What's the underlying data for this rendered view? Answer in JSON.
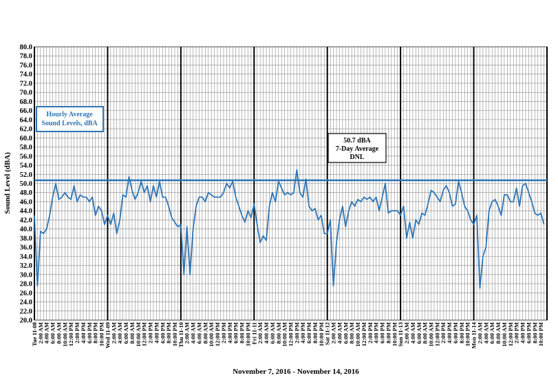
{
  "chart_data": {
    "type": "line",
    "y_label": "Sound Level (dBA)",
    "x_label": "November 7, 2016 - November 14, 2016",
    "ylim": [
      20,
      80
    ],
    "yticks": [
      {
        "value": 20,
        "label": "20.0"
      },
      {
        "value": 22,
        "label": "22.0"
      },
      {
        "value": 24,
        "label": "24.0"
      },
      {
        "value": 26,
        "label": "26.0"
      },
      {
        "value": 28,
        "label": "28.0"
      },
      {
        "value": 30,
        "label": "30.0"
      },
      {
        "value": 32,
        "label": "32.0"
      },
      {
        "value": 34,
        "label": "34.0"
      },
      {
        "value": 36,
        "label": "36.0"
      },
      {
        "value": 38,
        "label": "38.0"
      },
      {
        "value": 40,
        "label": "40.0"
      },
      {
        "value": 42,
        "label": "42.0"
      },
      {
        "value": 44,
        "label": "44.0"
      },
      {
        "value": 46,
        "label": "46.0"
      },
      {
        "value": 48,
        "label": "48.0"
      },
      {
        "value": 50,
        "label": "50.0"
      },
      {
        "value": 52,
        "label": "52.0"
      },
      {
        "value": 54,
        "label": "54.0"
      },
      {
        "value": 56,
        "label": "56.0"
      },
      {
        "value": 58,
        "label": "58.0"
      },
      {
        "value": 60,
        "label": "60.0"
      },
      {
        "value": 62,
        "label": "62.0"
      },
      {
        "value": 64,
        "label": "64.0"
      },
      {
        "value": 66,
        "label": "66.0"
      },
      {
        "value": 68,
        "label": "68.0"
      },
      {
        "value": 70,
        "label": "70.0"
      },
      {
        "value": 72,
        "label": "72.0"
      },
      {
        "value": 74,
        "label": "74.0"
      },
      {
        "value": 76,
        "label": "76.0"
      },
      {
        "value": 78,
        "label": "78.0"
      },
      {
        "value": 80,
        "label": "80.0"
      }
    ],
    "grid": true,
    "categories": [
      "Tue 11-08",
      null,
      "2:00 AM",
      null,
      "4:00 AM",
      null,
      "6:00 AM",
      null,
      "8:00 AM",
      null,
      "10:00 AM",
      null,
      "12:00 PM",
      null,
      "2:00 PM",
      null,
      "4:00 PM",
      null,
      "6:00 PM",
      null,
      "8:00 PM",
      null,
      "10:00 PM",
      null,
      "Wed 11-09",
      null,
      "2:00 AM",
      null,
      "4:00 AM",
      null,
      "6:00 AM",
      null,
      "8:00 AM",
      null,
      "10:00 AM",
      null,
      "12:00 PM",
      null,
      "2:00 PM",
      null,
      "4:00 PM",
      null,
      "6:00 PM",
      null,
      "8:00 PM",
      null,
      "10:00 PM",
      null,
      "Thu 11-10",
      null,
      "2:00 AM",
      null,
      "4:00 AM",
      null,
      "6:00 AM",
      null,
      "8:00 AM",
      null,
      "10:00 AM",
      null,
      "12:00 PM",
      null,
      "2:00 PM",
      null,
      "4:00 PM",
      null,
      "6:00 PM",
      null,
      "8:00 PM",
      null,
      "10:00 PM",
      null,
      "Fri 11-11",
      null,
      "2:00 AM",
      null,
      "4:00 AM",
      null,
      "6:00 AM",
      null,
      "8:00 AM",
      null,
      "10:00 AM",
      null,
      "12:00 PM",
      null,
      "2:00 PM",
      null,
      "4:00 PM",
      null,
      "6:00 PM",
      null,
      "8:00 PM",
      null,
      "10:00 PM",
      null,
      "Sat 11-12",
      null,
      "2:00 AM",
      null,
      "4:00 AM",
      null,
      "6:00 AM",
      null,
      "8:00 AM",
      null,
      "10:00 AM",
      null,
      "12:00 PM",
      null,
      "2:00 PM",
      null,
      "4:00 PM",
      null,
      "6:00 PM",
      null,
      "8:00 PM",
      null,
      "10:00 PM",
      null,
      "Sun 11-13",
      null,
      "2:00 AM",
      null,
      "4:00 AM",
      null,
      "6:00 AM",
      null,
      "8:00 AM",
      null,
      "10:00 AM",
      null,
      "12:00 PM",
      null,
      "2:00 PM",
      null,
      "4:00 PM",
      null,
      "6:00 PM",
      null,
      "8:00 PM",
      null,
      "10:00 PM",
      null,
      "Mon 11-14",
      null,
      "2:00 AM",
      null,
      "4:00 AM",
      null,
      "6:00 AM",
      null,
      "8:00 AM",
      null,
      "10:00 AM",
      null,
      "12:00 PM",
      null,
      "2:00 PM",
      null,
      "4:00 PM",
      null,
      "6:00 PM",
      null,
      "8:00 PM",
      null,
      "10:00 PM",
      null
    ],
    "series": [
      {
        "name": [
          "Hourly Average",
          "Sound Levels, dBA"
        ],
        "color": "#2e75b6",
        "values": [
          43,
          27.5,
          39.5,
          39,
          40,
          43,
          47,
          50,
          46.5,
          47,
          48,
          47,
          46.5,
          49.5,
          46,
          47.5,
          47,
          47,
          46,
          47,
          43,
          45,
          44,
          41,
          43,
          41,
          43.5,
          39,
          42,
          47.5,
          47,
          51.5,
          48.5,
          46.5,
          48,
          50.5,
          48,
          49.5,
          46,
          49.5,
          47,
          50.5,
          47,
          47,
          45,
          42.5,
          41.5,
          40.5,
          41,
          30,
          40.5,
          30,
          40,
          45,
          47,
          47,
          46,
          48,
          47.5,
          47,
          47,
          47,
          48,
          50,
          49,
          50.5,
          47,
          45,
          43,
          41.5,
          44,
          42.5,
          45.5,
          41,
          37,
          38.5,
          37.5,
          45,
          48,
          46,
          50.5,
          49,
          47.5,
          48,
          47.5,
          48,
          53,
          48,
          47,
          51,
          45,
          44,
          44.5,
          42,
          43,
          39,
          39,
          42,
          27.5,
          37,
          42,
          45,
          40.5,
          44,
          46,
          45,
          46.5,
          46,
          47,
          46.5,
          47,
          46,
          47,
          44,
          47,
          50,
          43.5,
          44,
          44,
          44,
          43,
          45,
          38,
          41.5,
          38,
          42,
          41,
          43.5,
          43,
          45.5,
          48.5,
          48,
          47,
          46,
          48.5,
          49.5,
          48,
          45,
          45.5,
          50.5,
          48,
          45,
          44,
          42,
          41,
          43,
          27,
          34,
          36,
          44,
          46,
          46.5,
          45,
          43,
          47.5,
          47.5,
          46,
          46,
          49,
          45,
          49.5,
          50,
          48,
          46,
          43.5,
          43,
          43.5,
          41
        ]
      }
    ],
    "reference_line": {
      "value": 50.7,
      "color": "#2e75b6",
      "label": [
        "50.7 dBA",
        "7-Day Average",
        "DNL"
      ]
    }
  }
}
